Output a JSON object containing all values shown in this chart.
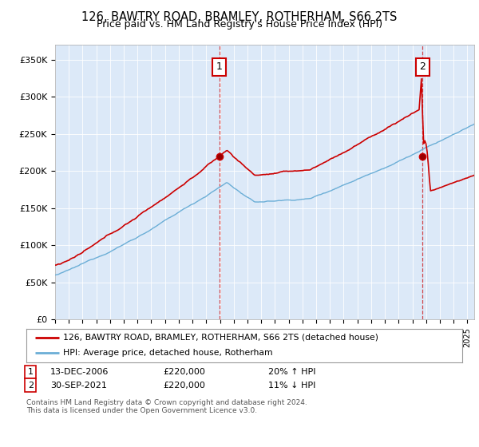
{
  "title": "126, BAWTRY ROAD, BRAMLEY, ROTHERHAM, S66 2TS",
  "subtitle": "Price paid vs. HM Land Registry's House Price Index (HPI)",
  "legend_line1": "126, BAWTRY ROAD, BRAMLEY, ROTHERHAM, S66 2TS (detached house)",
  "legend_line2": "HPI: Average price, detached house, Rotherham",
  "annotation1_label": "1",
  "annotation1_date": "13-DEC-2006",
  "annotation1_price": "£220,000",
  "annotation1_hpi": "20% ↑ HPI",
  "annotation2_label": "2",
  "annotation2_date": "30-SEP-2021",
  "annotation2_price": "£220,000",
  "annotation2_hpi": "11% ↓ HPI",
  "footer": "Contains HM Land Registry data © Crown copyright and database right 2024.\nThis data is licensed under the Open Government Licence v3.0.",
  "bg_color": "#dce9f8",
  "red_color": "#cc0000",
  "blue_color": "#6baed6",
  "ylim": [
    0,
    370000
  ],
  "yticks": [
    0,
    50000,
    100000,
    150000,
    200000,
    250000,
    300000,
    350000
  ],
  "ytick_labels": [
    "£0",
    "£50K",
    "£100K",
    "£150K",
    "£200K",
    "£250K",
    "£300K",
    "£350K"
  ],
  "sale1_year": 2006.95,
  "sale1_price": 220000,
  "sale2_year": 2021.75,
  "sale2_price": 220000
}
